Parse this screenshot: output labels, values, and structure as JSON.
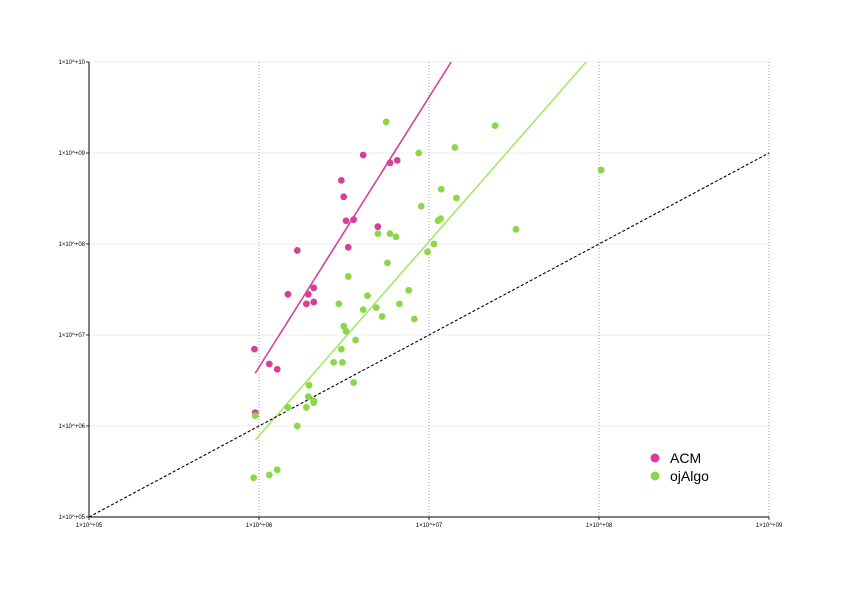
{
  "chart_data": {
    "type": "scatter",
    "x_scale": "log",
    "y_scale": "log",
    "xlim": [
      100000,
      1000000000
    ],
    "ylim": [
      100000,
      10000000000
    ],
    "x_ticks": [
      {
        "value": 100000,
        "label": "1×10^+05"
      },
      {
        "value": 1000000,
        "label": "1×10^+06"
      },
      {
        "value": 10000000,
        "label": "1×10^+07"
      },
      {
        "value": 100000000,
        "label": "1×10^+08"
      },
      {
        "value": 1000000000,
        "label": "1×10^+09"
      }
    ],
    "y_ticks": [
      {
        "value": 100000,
        "label": "1×10^+05"
      },
      {
        "value": 1000000,
        "label": "1×10^+06"
      },
      {
        "value": 10000000,
        "label": "1×10^+07"
      },
      {
        "value": 100000000,
        "label": "1×10^+08"
      },
      {
        "value": 1000000000,
        "label": "1×10^+09"
      },
      {
        "value": 10000000000,
        "label": "1×10^+10"
      }
    ],
    "x_grid": "dotted vertical lines at major ticks",
    "y_grid": "light horizontal lines at major ticks",
    "legend_position": "bottom-right",
    "series": [
      {
        "name": "ACM",
        "color": "#d6409a",
        "points": [
          [
            940000,
            7000000
          ],
          [
            950000,
            1400000
          ],
          [
            1150000,
            4800000
          ],
          [
            1280000,
            4200000
          ],
          [
            1480000,
            28000000
          ],
          [
            1680000,
            85000000
          ],
          [
            1900000,
            22000000
          ],
          [
            1950000,
            28000000
          ],
          [
            2100000,
            33000000
          ],
          [
            2100000,
            23000000
          ],
          [
            3050000,
            500000000
          ],
          [
            3150000,
            330000000
          ],
          [
            3250000,
            180000000
          ],
          [
            3350000,
            92000000
          ],
          [
            3600000,
            185000000
          ],
          [
            4100000,
            950000000
          ],
          [
            5000000,
            155000000
          ],
          [
            5900000,
            780000000
          ],
          [
            6500000,
            830000000
          ]
        ]
      },
      {
        "name": "ojAlgo",
        "color": "#8cd64a",
        "points": [
          [
            930000,
            270000
          ],
          [
            950000,
            1300000
          ],
          [
            1150000,
            290000
          ],
          [
            1280000,
            330000
          ],
          [
            1480000,
            1600000
          ],
          [
            1680000,
            1000000
          ],
          [
            1900000,
            1600000
          ],
          [
            1950000,
            2100000
          ],
          [
            1970000,
            2800000
          ],
          [
            2100000,
            1800000
          ],
          [
            2100000,
            1900000
          ],
          [
            2750000,
            5000000
          ],
          [
            2950000,
            22000000
          ],
          [
            3050000,
            7000000
          ],
          [
            3100000,
            5000000
          ],
          [
            3150000,
            12500000
          ],
          [
            3250000,
            11000000
          ],
          [
            3350000,
            44000000
          ],
          [
            3600000,
            3000000
          ],
          [
            3700000,
            8800000
          ],
          [
            4100000,
            19000000
          ],
          [
            4350000,
            27000000
          ],
          [
            4900000,
            20000000
          ],
          [
            5000000,
            130000000
          ],
          [
            5300000,
            16000000
          ],
          [
            5600000,
            2200000000
          ],
          [
            5700000,
            62000000
          ],
          [
            5900000,
            130000000
          ],
          [
            6400000,
            120000000
          ],
          [
            6700000,
            22000000
          ],
          [
            7600000,
            31000000
          ],
          [
            8200000,
            15000000
          ],
          [
            8700000,
            1000000000
          ],
          [
            9000000,
            260000000
          ],
          [
            9800000,
            82000000
          ],
          [
            10700000,
            100000000
          ],
          [
            11300000,
            180000000
          ],
          [
            11700000,
            190000000
          ],
          [
            11800000,
            400000000
          ],
          [
            14200000,
            1150000000
          ],
          [
            14500000,
            320000000
          ],
          [
            24500000,
            2000000000
          ],
          [
            32500000,
            145000000
          ],
          [
            103000000,
            650000000
          ]
        ]
      }
    ],
    "trend_lines": [
      {
        "series": "ACM",
        "color": "#d6409a",
        "from": [
          950000,
          3800000
        ],
        "to": [
          13500000,
          10000000000
        ]
      },
      {
        "series": "ojAlgo",
        "color": "#a6e86a",
        "from": [
          950000,
          700000
        ],
        "to": [
          84000000,
          10000000000
        ]
      },
      {
        "series": "reference",
        "color": "#000000",
        "style": "dashed",
        "from": [
          100000,
          100000
        ],
        "to": [
          1000000000,
          1000000000
        ]
      }
    ]
  }
}
